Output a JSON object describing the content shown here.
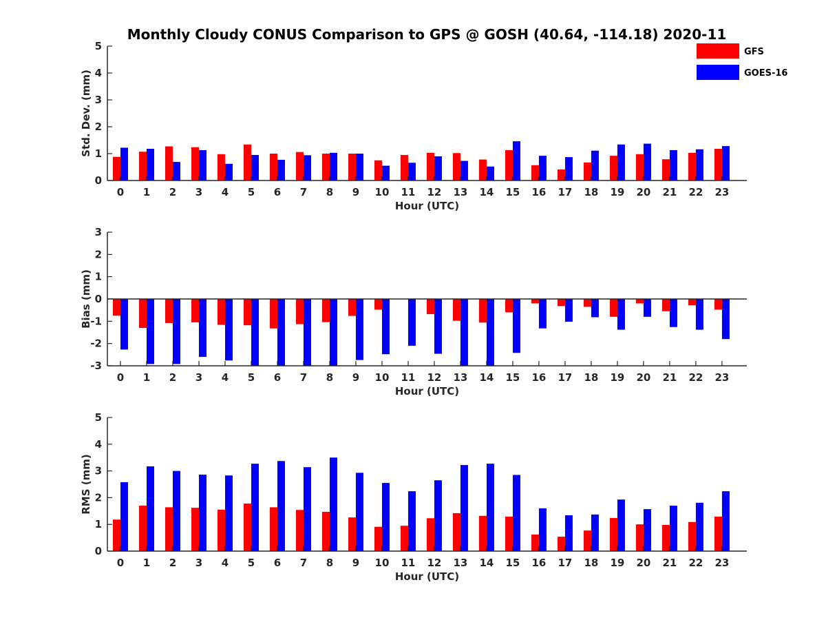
{
  "title": "Monthly Cloudy CONUS Comparison to GPS @ GOSH (40.64, -114.18) 2020-11",
  "colors": {
    "GFS": "#ff0000",
    "GOES-16": "#0000ff"
  },
  "legend": [
    {
      "name": "GFS",
      "color": "#ff0000"
    },
    {
      "name": "GOES-16",
      "color": "#0000ff"
    }
  ],
  "chart_data": [
    {
      "type": "bar",
      "id": "stddev",
      "categories": [
        "0",
        "1",
        "2",
        "3",
        "4",
        "5",
        "6",
        "7",
        "8",
        "9",
        "10",
        "11",
        "12",
        "13",
        "14",
        "15",
        "16",
        "17",
        "18",
        "19",
        "20",
        "21",
        "22",
        "23"
      ],
      "xlabel": "Hour (UTC)",
      "ylabel": "Std. Dev. (mm)",
      "ylim": [
        0,
        5
      ],
      "yticks": [
        "0",
        "1",
        "2",
        "3",
        "4",
        "5"
      ],
      "legend_position": "top-right",
      "series": [
        {
          "name": "GFS",
          "values": [
            0.88,
            1.07,
            1.27,
            1.24,
            0.98,
            1.34,
            1.0,
            1.06,
            1.0,
            1.0,
            0.75,
            0.95,
            1.03,
            1.02,
            0.78,
            1.13,
            0.57,
            0.41,
            0.67,
            0.92,
            0.98,
            0.79,
            1.03,
            1.18
          ]
        },
        {
          "name": "GOES-16",
          "values": [
            1.22,
            1.18,
            0.69,
            1.13,
            0.62,
            0.95,
            0.77,
            0.94,
            1.03,
            1.0,
            0.55,
            0.66,
            0.9,
            0.73,
            0.52,
            1.46,
            0.92,
            0.87,
            1.11,
            1.34,
            1.37,
            1.13,
            1.16,
            1.28
          ]
        }
      ]
    },
    {
      "type": "bar",
      "id": "bias",
      "categories": [
        "0",
        "1",
        "2",
        "3",
        "4",
        "5",
        "6",
        "7",
        "8",
        "9",
        "10",
        "11",
        "12",
        "13",
        "14",
        "15",
        "16",
        "17",
        "18",
        "19",
        "20",
        "21",
        "22",
        "23"
      ],
      "xlabel": "Hour (UTC)",
      "ylabel": "Bias (mm)",
      "ylim": [
        -3,
        3
      ],
      "yticks": [
        "-3",
        "-2",
        "-1",
        "0",
        "1",
        "2",
        "3"
      ],
      "series": [
        {
          "name": "GFS",
          "values": [
            -0.75,
            -1.3,
            -1.08,
            -1.05,
            -1.16,
            -1.18,
            -1.32,
            -1.13,
            -1.04,
            -0.76,
            -0.48,
            0.0,
            -0.68,
            -0.98,
            -1.06,
            -0.6,
            -0.2,
            -0.32,
            -0.35,
            -0.8,
            -0.2,
            -0.55,
            -0.28,
            -0.48
          ]
        },
        {
          "name": "GOES-16",
          "values": [
            -2.27,
            -2.92,
            -2.92,
            -2.6,
            -2.76,
            -3.0,
            -3.0,
            -3.0,
            -3.0,
            -2.74,
            -2.48,
            -2.1,
            -2.46,
            -3.0,
            -3.0,
            -2.42,
            -1.32,
            -1.02,
            -0.82,
            -1.38,
            -0.8,
            -1.26,
            -1.38,
            -1.8
          ]
        }
      ]
    },
    {
      "type": "bar",
      "id": "rms",
      "categories": [
        "0",
        "1",
        "2",
        "3",
        "4",
        "5",
        "6",
        "7",
        "8",
        "9",
        "10",
        "11",
        "12",
        "13",
        "14",
        "15",
        "16",
        "17",
        "18",
        "19",
        "20",
        "21",
        "22",
        "23"
      ],
      "xlabel": "Hour (UTC)",
      "ylabel": "RMS (mm)",
      "ylim": [
        0,
        5
      ],
      "yticks": [
        "0",
        "1",
        "2",
        "3",
        "4",
        "5"
      ],
      "series": [
        {
          "name": "GFS",
          "values": [
            1.18,
            1.7,
            1.64,
            1.62,
            1.55,
            1.78,
            1.64,
            1.54,
            1.47,
            1.26,
            0.91,
            0.95,
            1.23,
            1.42,
            1.32,
            1.29,
            0.62,
            0.54,
            0.77,
            1.24,
            1.0,
            0.98,
            1.09,
            1.29
          ]
        },
        {
          "name": "GOES-16",
          "values": [
            2.58,
            3.17,
            3.0,
            2.86,
            2.83,
            3.27,
            3.37,
            3.14,
            3.5,
            2.93,
            2.55,
            2.24,
            2.65,
            3.22,
            3.27,
            2.85,
            1.6,
            1.34,
            1.37,
            1.93,
            1.57,
            1.7,
            1.81,
            2.24
          ]
        }
      ]
    }
  ]
}
